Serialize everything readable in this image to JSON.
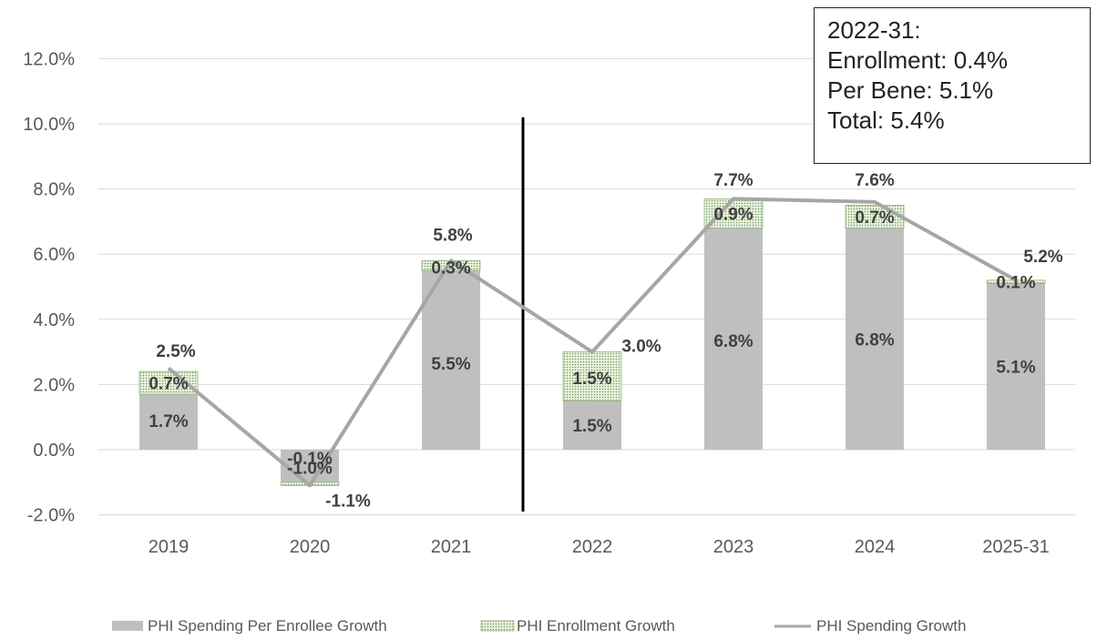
{
  "chart_data": {
    "type": "bar",
    "categories": [
      "2019",
      "2020",
      "2021",
      "2022",
      "2023",
      "2024",
      "2025-31"
    ],
    "ylim": [
      -2,
      12
    ],
    "yticks": [
      -2,
      0,
      2,
      4,
      6,
      8,
      10,
      12
    ],
    "ytick_labels": [
      "-2.0%",
      "0.0%",
      "2.0%",
      "4.0%",
      "6.0%",
      "8.0%",
      "10.0%",
      "12.0%"
    ],
    "grid": true,
    "stacked": true,
    "divider_after_category": "2021",
    "series": [
      {
        "name": "PHI Spending Per Enrollee Growth",
        "type": "bar",
        "color": "#bfbfbf",
        "values": [
          1.7,
          -1.0,
          5.5,
          1.5,
          6.8,
          6.8,
          5.1
        ],
        "labels": [
          "1.7%",
          "-1.0%",
          "5.5%",
          "1.5%",
          "6.8%",
          "6.8%",
          "5.1%"
        ]
      },
      {
        "name": "PHI Enrollment Growth",
        "type": "bar",
        "pattern": "dotted",
        "color": "#8fb37a",
        "values": [
          0.7,
          -0.1,
          0.3,
          1.5,
          0.9,
          0.7,
          0.1
        ],
        "labels": [
          "0.7%",
          "-0.1%",
          "0.3%",
          "1.5%",
          "0.9%",
          "0.7%",
          "0.1%"
        ]
      },
      {
        "name": "PHI Spending Growth",
        "type": "line",
        "color": "#a6a6a6",
        "values": [
          2.5,
          -1.1,
          5.8,
          3.0,
          7.7,
          7.6,
          5.2
        ],
        "labels": [
          "2.5%",
          "-1.1%",
          "5.8%",
          "3.0%",
          "7.7%",
          "7.6%",
          "5.2%"
        ]
      }
    ],
    "legend_position": "bottom",
    "annotation": {
      "lines": [
        "2022-31:",
        "Enrollment: 0.4%",
        "Per Bene: 5.1%",
        "Total: 5.4%"
      ]
    }
  }
}
